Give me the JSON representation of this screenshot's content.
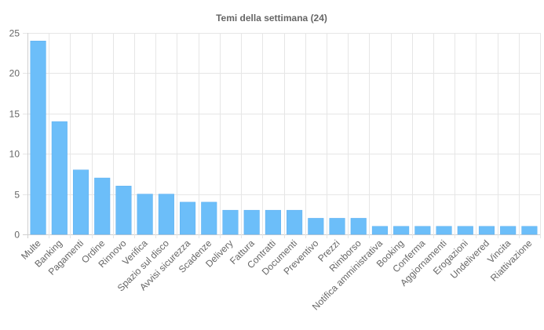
{
  "chart_data": {
    "type": "bar",
    "title": "Temi della settimana (24)",
    "xlabel": "",
    "ylabel": "",
    "ylim": [
      0,
      25
    ],
    "yticks": [
      0,
      5,
      10,
      15,
      20,
      25
    ],
    "grid": true,
    "legend": "none",
    "bar_color": "#6cbef9",
    "bar_border_color": "#5aaef0",
    "categories": [
      "Multe",
      "Banking",
      "Pagamenti",
      "Ordine",
      "Rinnovo",
      "Verifica",
      "Spazio sul disco",
      "Avvisi sicurezza",
      "Scadenze",
      "Delivery",
      "Fattura",
      "Contratti",
      "Documenti",
      "Preventivo",
      "Prezzi",
      "Rimborso",
      "Notifica amministrativa",
      "Booking",
      "Conferma",
      "Aggiornamenti",
      "Erogazioni",
      "Undelivered",
      "Vincita",
      "Riattivazione"
    ],
    "values": [
      24,
      14,
      8,
      7,
      6,
      5,
      5,
      4,
      4,
      3,
      3,
      3,
      3,
      2,
      2,
      2,
      1,
      1,
      1,
      1,
      1,
      1,
      1,
      1
    ]
  }
}
